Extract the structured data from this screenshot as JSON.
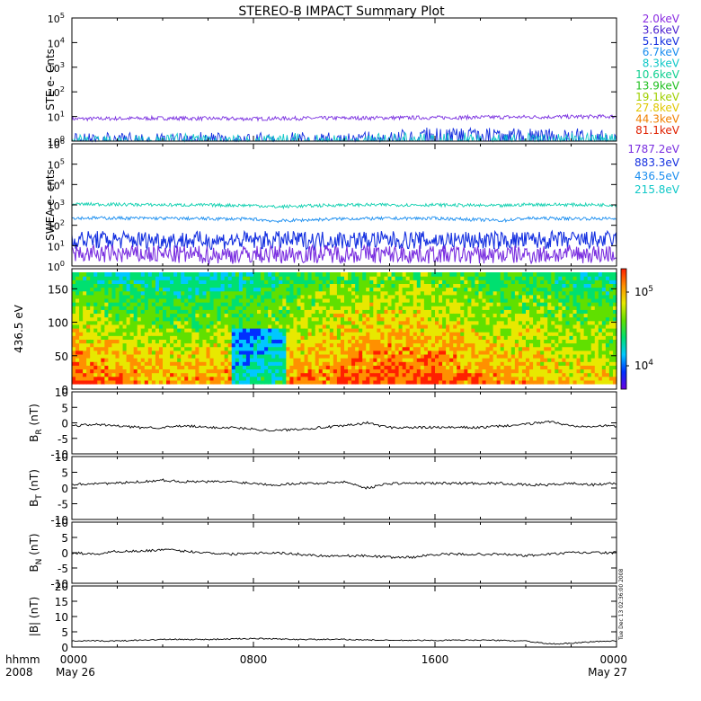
{
  "title": "STEREO-B IMPACT Summary Plot",
  "footer": {
    "row1_label": "hhmm",
    "row2_label": "2008",
    "timestamp": "Tue Dec 13 02:36:00 2008"
  },
  "chart_data": {
    "type": "line",
    "x_range_hours": [
      0,
      24
    ],
    "x_ticks": [
      {
        "hour": 0,
        "label": "0000",
        "sublabel": "May 26"
      },
      {
        "hour": 8,
        "label": "0800",
        "sublabel": ""
      },
      {
        "hour": 16,
        "label": "1600",
        "sublabel": ""
      },
      {
        "hour": 24,
        "label": "0000",
        "sublabel": "May 27"
      }
    ],
    "panels": [
      {
        "id": "ste",
        "ylabel": "STE e- Cnts",
        "scale": "log",
        "ylim": [
          1,
          100000
        ],
        "y_ticks": [
          "10^0",
          "10^1",
          "10^2",
          "10^3",
          "10^4",
          "10^5"
        ],
        "legend": [
          {
            "label": "2.0keV",
            "color": "#8a2be2"
          },
          {
            "label": "3.6keV",
            "color": "#4b1fd0"
          },
          {
            "label": "5.1keV",
            "color": "#1530e0"
          },
          {
            "label": "6.7keV",
            "color": "#1b8ef0"
          },
          {
            "label": "8.3keV",
            "color": "#10c8c8"
          },
          {
            "label": "10.6keV",
            "color": "#10d090"
          },
          {
            "label": "13.9keV",
            "color": "#20c020"
          },
          {
            "label": "19.1keV",
            "color": "#a0d000"
          },
          {
            "label": "27.8keV",
            "color": "#e0c800"
          },
          {
            "label": "44.3keV",
            "color": "#f08000"
          },
          {
            "label": "81.1keV",
            "color": "#e02000"
          }
        ],
        "series": [
          {
            "label": "2.0keV",
            "color": "#7a2fe0",
            "x": [
              0,
              4,
              8,
              9,
              12,
              16,
              20,
              24
            ],
            "y": [
              8,
              8.5,
              8,
              8.3,
              8.6,
              9,
              9.5,
              10
            ]
          },
          {
            "label": "3.6keV",
            "color": "#1530e0",
            "x": [
              0,
              8,
              14,
              15,
              16,
              20,
              24
            ],
            "y": [
              1.1,
              1.1,
              1.2,
              1.6,
              1.8,
              1.7,
              1.5
            ]
          },
          {
            "label": "8.3keV",
            "color": "#10c8c8",
            "x": [
              0,
              12,
              15,
              18,
              20,
              24
            ],
            "y": [
              1,
              1,
              1.1,
              1.1,
              1.1,
              1.05
            ]
          }
        ]
      },
      {
        "id": "swea",
        "ylabel": "SWEA e- cnts",
        "scale": "log",
        "ylim": [
          1,
          1000000
        ],
        "y_ticks": [
          "10^0",
          "10^1",
          "10^2",
          "10^3",
          "10^4",
          "10^5",
          "10^6"
        ],
        "legend": [
          {
            "label": "1787.2eV",
            "color": "#7a2fe0"
          },
          {
            "label": "883.3eV",
            "color": "#1530e0"
          },
          {
            "label": "436.5eV",
            "color": "#1b8ef0"
          },
          {
            "label": "215.8eV",
            "color": "#10c8c8"
          }
        ],
        "series": [
          {
            "label": "215.8eV",
            "color": "#10d0b0",
            "x": [
              0,
              4,
              8,
              9,
              12,
              16,
              19,
              20,
              24
            ],
            "y": [
              1100,
              1000,
              950,
              800,
              1000,
              1000,
              900,
              1050,
              1000
            ]
          },
          {
            "label": "436.5eV",
            "color": "#1b8ef0",
            "x": [
              0,
              4,
              8,
              9,
              12,
              16,
              19,
              20,
              24
            ],
            "y": [
              230,
              220,
              200,
              160,
              210,
              220,
              170,
              220,
              210
            ]
          },
          {
            "label": "883.3eV",
            "color": "#1530e0",
            "x": [
              0,
              6,
              12,
              18,
              24
            ],
            "y": [
              20,
              18,
              19,
              18,
              19
            ]
          },
          {
            "label": "1787.2eV",
            "color": "#7a2fe0",
            "x": [
              0,
              6,
              12,
              18,
              24
            ],
            "y": [
              4,
              3.5,
              4,
              3.5,
              4
            ]
          }
        ]
      },
      {
        "id": "pitch",
        "ylabel": "436.5 eV",
        "scale": "linear",
        "ylim": [
          0,
          180
        ],
        "y_ticks": [
          "0",
          "50",
          "100",
          "150"
        ],
        "colorbar": {
          "ticks": [
            "10^4",
            "10^5"
          ],
          "colors": [
            "#6a00e0",
            "#0030ff",
            "#00c8ff",
            "#00e070",
            "#60e000",
            "#e8e800",
            "#ff9000",
            "#ff2000"
          ]
        }
      },
      {
        "id": "br",
        "ylabel": "BR (nT)",
        "ylabel_main": "B",
        "ylabel_sub": "R",
        "ylabel_unit": " (nT)",
        "scale": "linear",
        "ylim": [
          -10,
          10
        ],
        "y_ticks": [
          "-10",
          "-5",
          "0",
          "5",
          "10"
        ],
        "series": [
          {
            "label": "BR",
            "color": "#000000",
            "x": [
              0,
              1,
              2,
              3,
              4,
              5,
              6,
              7,
              8,
              9,
              10,
              11,
              12,
              13,
              14,
              15,
              16,
              17,
              18,
              19,
              20,
              21,
              22,
              23,
              24
            ],
            "y": [
              -1,
              -0.5,
              -1,
              -1.5,
              -1.5,
              -1,
              -1.5,
              -1.5,
              -2,
              -2.5,
              -2,
              -1.5,
              -1,
              0,
              -1.5,
              -1.5,
              -1.5,
              -1.5,
              -1.5,
              -1,
              -0.5,
              0.5,
              -1,
              -1,
              -1
            ]
          }
        ]
      },
      {
        "id": "bt",
        "ylabel": "BT (nT)",
        "ylabel_main": "B",
        "ylabel_sub": "T",
        "ylabel_unit": " (nT)",
        "scale": "linear",
        "ylim": [
          -10,
          10
        ],
        "y_ticks": [
          "-10",
          "-5",
          "0",
          "5",
          "10"
        ],
        "series": [
          {
            "label": "BT",
            "color": "#000000",
            "x": [
              0,
              1,
              2,
              3,
              4,
              5,
              6,
              7,
              8,
              9,
              10,
              11,
              12,
              13,
              14,
              15,
              16,
              17,
              18,
              19,
              20,
              21,
              22,
              23,
              24
            ],
            "y": [
              1,
              1.5,
              1.5,
              2,
              2.5,
              2,
              2,
              2,
              1.5,
              1,
              1.5,
              1.5,
              2,
              0,
              1.5,
              1.5,
              1.5,
              1.5,
              1.5,
              1.5,
              1,
              1,
              1.5,
              1,
              1.5
            ]
          }
        ]
      },
      {
        "id": "bn",
        "ylabel": "BN (nT)",
        "ylabel_main": "B",
        "ylabel_sub": "N",
        "ylabel_unit": " (nT)",
        "scale": "linear",
        "ylim": [
          -10,
          10
        ],
        "y_ticks": [
          "-10",
          "-5",
          "0",
          "5",
          "10"
        ],
        "series": [
          {
            "label": "BN",
            "color": "#000000",
            "x": [
              0,
              1,
              2,
              3,
              4,
              5,
              6,
              7,
              8,
              9,
              10,
              11,
              12,
              13,
              14,
              15,
              16,
              17,
              18,
              19,
              20,
              21,
              22,
              23,
              24
            ],
            "y": [
              0,
              -0.5,
              0.5,
              0.5,
              1,
              0.5,
              0,
              -0.5,
              0,
              0,
              -0.5,
              -1,
              -1,
              -1,
              -1.5,
              -1.5,
              -0.5,
              -0.5,
              -0.5,
              -0.5,
              -1,
              -0.5,
              0,
              0,
              0
            ]
          }
        ]
      },
      {
        "id": "bmag",
        "ylabel": "|B| (nT)",
        "scale": "linear",
        "ylim": [
          0,
          20
        ],
        "y_ticks": [
          "0",
          "5",
          "10",
          "15",
          "20"
        ],
        "series": [
          {
            "label": "|B|",
            "color": "#000000",
            "x": [
              0,
              2,
              4,
              6,
              8,
              10,
              12,
              14,
              16,
              18,
              20,
              21,
              22,
              23,
              24
            ],
            "y": [
              2,
              2,
              2.5,
              2.5,
              2.8,
              2.5,
              2.5,
              2.2,
              2.2,
              2.3,
              2,
              1,
              1.2,
              1.8,
              2
            ]
          }
        ]
      }
    ]
  }
}
